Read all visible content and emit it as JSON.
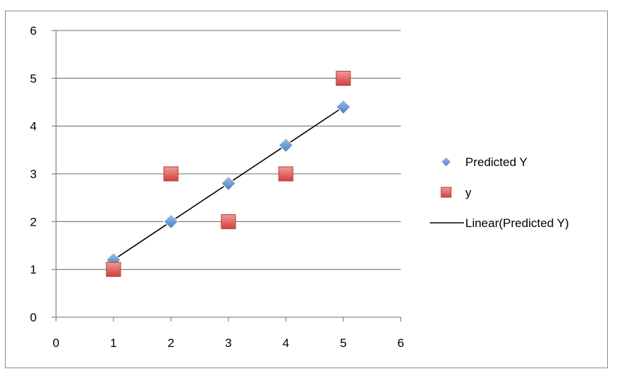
{
  "chart_data": {
    "type": "scatter",
    "xlim": [
      0,
      6
    ],
    "ylim": [
      0,
      6
    ],
    "x_ticks": [
      "0",
      "1",
      "2",
      "3",
      "4",
      "5",
      "6"
    ],
    "y_ticks": [
      "0",
      "1",
      "2",
      "3",
      "4",
      "5",
      "6"
    ],
    "grid": "horizontal",
    "legend_position": "right",
    "series": [
      {
        "name": "Predicted Y",
        "marker": "diamond",
        "color": "#4f81bd",
        "x": [
          1,
          2,
          3,
          4,
          5
        ],
        "y": [
          1.2,
          2.0,
          2.8,
          3.6,
          4.4
        ]
      },
      {
        "name": "y",
        "marker": "square",
        "color": "#e05a57",
        "x": [
          1,
          2,
          3,
          4,
          5
        ],
        "y": [
          1,
          3,
          2,
          3,
          5
        ]
      }
    ],
    "trendline": {
      "name": "Linear(Predicted Y)",
      "type": "linear",
      "color": "#000000",
      "x": [
        1,
        5
      ],
      "y": [
        1.2,
        4.4
      ]
    }
  },
  "colors": {
    "grid": "#8a8a8a",
    "axis": "#8a8a8a",
    "frame": "#8c8c8c"
  }
}
